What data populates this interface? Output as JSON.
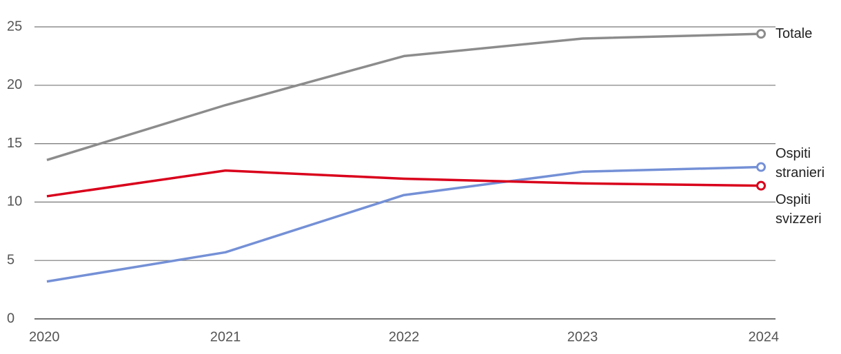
{
  "chart_data": {
    "type": "line",
    "categories": [
      "2020",
      "2021",
      "2022",
      "2023",
      "2024"
    ],
    "series": [
      {
        "name": "Totale",
        "color": "#8c8c8c",
        "values": [
          13.6,
          18.3,
          22.5,
          24.0,
          24.4
        ]
      },
      {
        "name": "Ospiti stranieri",
        "color": "#7490d6",
        "values": [
          3.2,
          5.7,
          10.6,
          12.6,
          13.0
        ]
      },
      {
        "name": "Ospiti svizzeri",
        "color": "#d9001b",
        "values": [
          10.5,
          12.7,
          12.0,
          11.6,
          11.4
        ]
      }
    ],
    "ylim": [
      0,
      25
    ],
    "yticks": [
      0,
      5,
      10,
      15,
      20,
      25
    ],
    "grid": true
  }
}
